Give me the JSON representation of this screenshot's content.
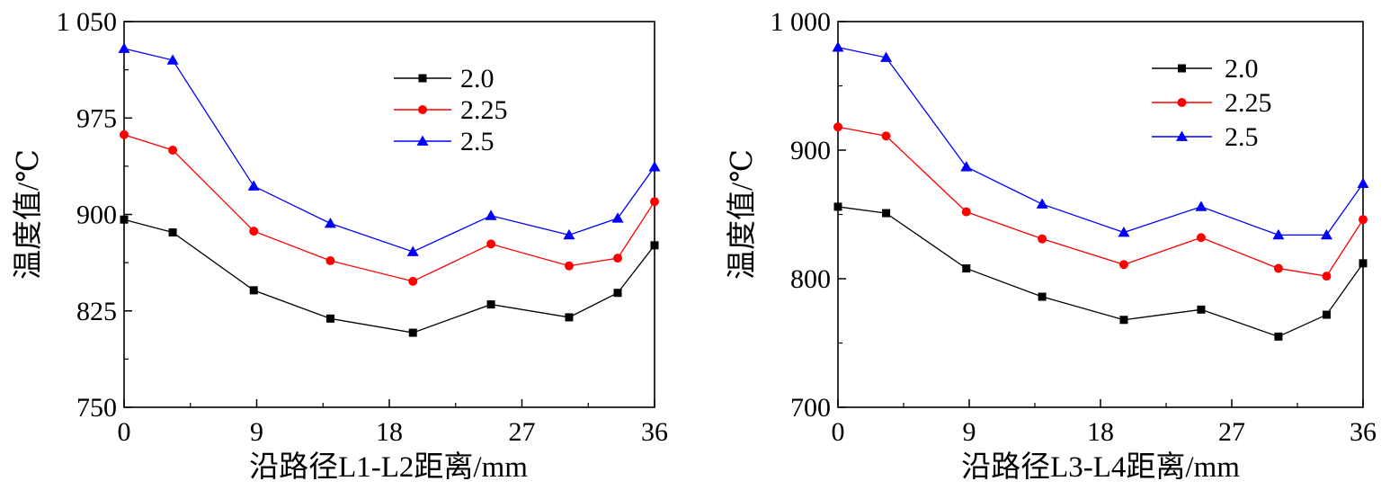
{
  "chart_data": [
    {
      "type": "line",
      "xlabel": "沿路径L1-L2距离/mm",
      "ylabel": "温度值/℃",
      "xlim": [
        0,
        36
      ],
      "ylim": [
        750,
        1050
      ],
      "x_ticks": [
        0,
        9,
        18,
        27,
        36
      ],
      "x_tick_labels": [
        "0",
        "9",
        "18",
        "27",
        "36"
      ],
      "y_ticks": [
        750,
        825,
        900,
        975,
        1050
      ],
      "y_tick_labels": [
        "750",
        "825",
        "900",
        "975",
        "1 050"
      ],
      "legend_position": "top-right",
      "grid": false,
      "x": [
        0,
        3.3,
        8.8,
        14.0,
        19.6,
        24.9,
        30.2,
        33.5,
        36
      ],
      "series": [
        {
          "name": "2.0",
          "color": "#000000",
          "marker": "square",
          "values": [
            896,
            886,
            841,
            819,
            808,
            830,
            820,
            839,
            876
          ]
        },
        {
          "name": "2.25",
          "color": "#ff0000",
          "marker": "circle",
          "values": [
            962,
            950,
            887,
            864,
            848,
            877,
            860,
            866,
            910
          ]
        },
        {
          "name": "2.5",
          "color": "#0000ff",
          "marker": "triangle",
          "values": [
            1029,
            1020,
            922,
            893,
            871,
            899,
            884,
            897,
            937
          ]
        }
      ]
    },
    {
      "type": "line",
      "xlabel": "沿路径L3-L4距离/mm",
      "ylabel": "温度值/℃",
      "xlim": [
        0,
        36
      ],
      "ylim": [
        700,
        1000
      ],
      "x_ticks": [
        0,
        9,
        18,
        27,
        36
      ],
      "x_tick_labels": [
        "0",
        "9",
        "18",
        "27",
        "36"
      ],
      "y_ticks": [
        700,
        800,
        900,
        1000
      ],
      "y_tick_labels": [
        "700",
        "800",
        "900",
        "1 000"
      ],
      "legend_position": "top-right",
      "grid": false,
      "x": [
        0,
        3.3,
        8.8,
        14.0,
        19.6,
        24.9,
        30.2,
        33.5,
        36
      ],
      "series": [
        {
          "name": "2.0",
          "color": "#000000",
          "marker": "square",
          "values": [
            856,
            851,
            808,
            786,
            768,
            776,
            755,
            772,
            812
          ]
        },
        {
          "name": "2.25",
          "color": "#ff0000",
          "marker": "circle",
          "values": [
            918,
            911,
            852,
            831,
            811,
            832,
            808,
            802,
            846
          ]
        },
        {
          "name": "2.5",
          "color": "#0000ff",
          "marker": "triangle",
          "values": [
            980,
            972,
            887,
            858,
            836,
            856,
            834,
            834,
            874
          ]
        }
      ]
    }
  ]
}
